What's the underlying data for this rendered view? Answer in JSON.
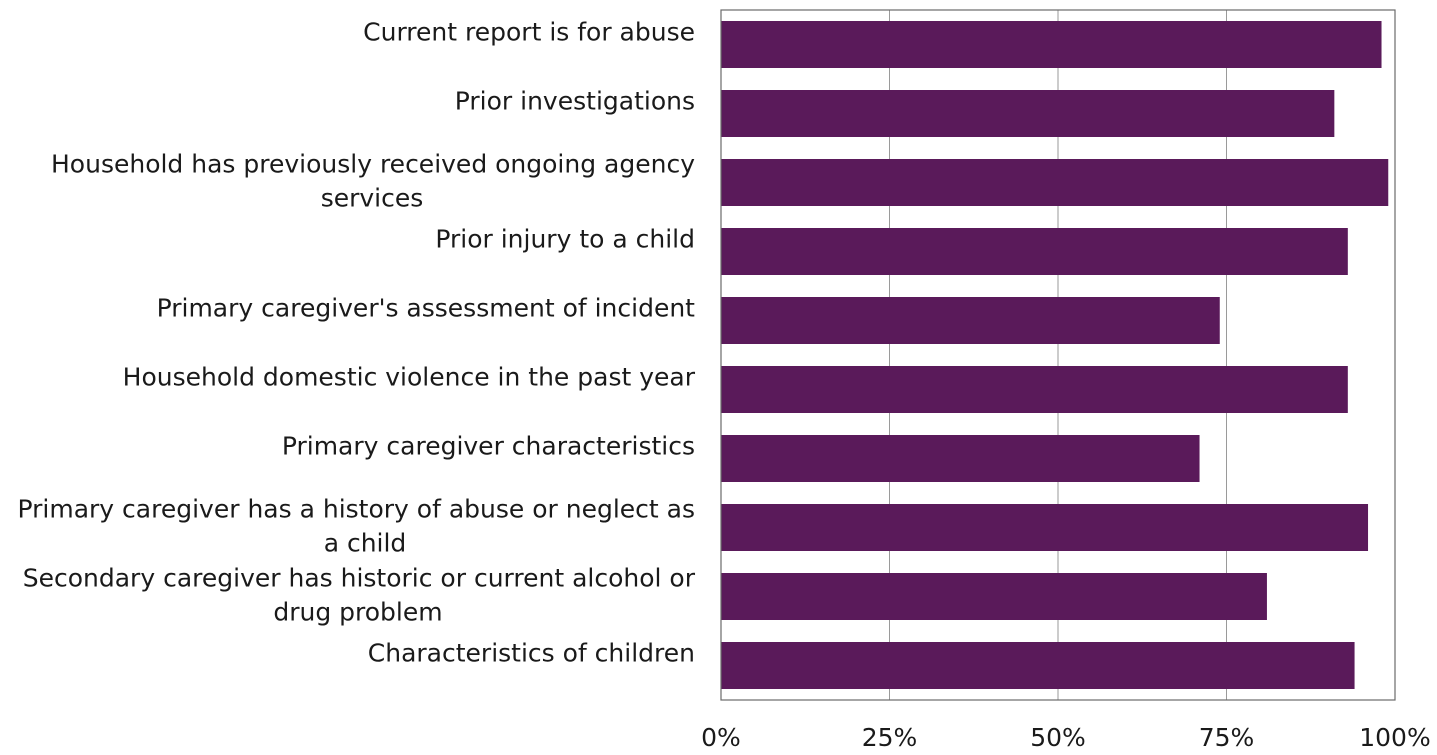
{
  "chart_data": {
    "type": "bar",
    "orientation": "horizontal",
    "categories": [
      "Current report is for abuse",
      "Prior investigations",
      "Household has previously received ongoing agency services",
      "Prior injury to a child",
      "Primary caregiver's assessment of incident",
      "Household domestic violence in the past year",
      "Primary caregiver characteristics",
      "Primary caregiver has a history of abuse or neglect as a child",
      "Secondary caregiver has historic or current alcohol or drug problem",
      "Characteristics of children"
    ],
    "category_label_lines": [
      [
        "Current report is for abuse"
      ],
      [
        "Prior investigations"
      ],
      [
        "Household has previously received ongoing agency",
        "services"
      ],
      [
        "Prior injury to a child"
      ],
      [
        "Primary caregiver's assessment of incident"
      ],
      [
        "Household domestic violence in the past year"
      ],
      [
        "Primary caregiver characteristics"
      ],
      [
        "Primary caregiver has a history of abuse or neglect as",
        "a child"
      ],
      [
        "Secondary caregiver has historic or current alcohol or",
        "drug problem"
      ],
      [
        "Characteristics of children"
      ]
    ],
    "values": [
      98,
      91,
      99,
      93,
      74,
      93,
      71,
      96,
      81,
      94
    ],
    "xlim": [
      0,
      100
    ],
    "xticks": [
      0,
      25,
      50,
      75,
      100
    ],
    "xtick_labels": [
      "0%",
      "25%",
      "50%",
      "75%",
      "100%"
    ],
    "grid": true,
    "bar_color": "#5a1a5a",
    "title": "",
    "xlabel": "",
    "ylabel": ""
  }
}
